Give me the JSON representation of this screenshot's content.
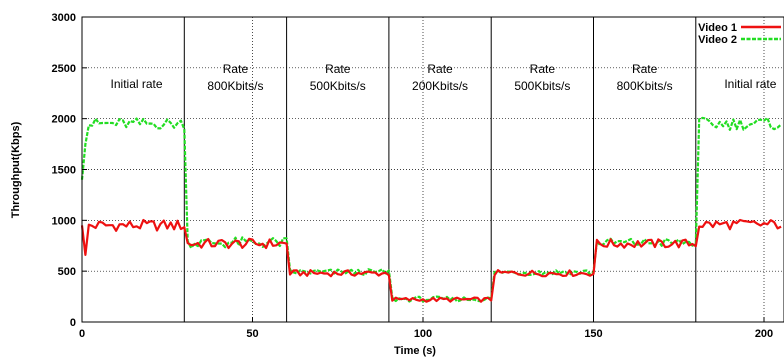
{
  "chart_data": {
    "type": "line",
    "xlabel": "Time (s)",
    "ylabel": "Throughput(Kbps)",
    "xlim": [
      0,
      205
    ],
    "ylim": [
      0,
      3000
    ],
    "x_ticks": [
      0,
      50,
      100,
      150,
      200
    ],
    "y_ticks": [
      0,
      500,
      1000,
      1500,
      2000,
      2500,
      3000
    ],
    "grid": true,
    "legend_position": "top-right",
    "colors": {
      "video1": "#ee1111",
      "video2": "#22dd22"
    },
    "phase_boundaries": [
      30,
      60,
      90,
      120,
      150,
      180
    ],
    "phases": [
      {
        "lines": [
          "Initial rate"
        ],
        "x_center": 16
      },
      {
        "lines": [
          "Rate",
          "800Kbits/s"
        ],
        "x_center": 45
      },
      {
        "lines": [
          "Rate",
          "500Kbits/s"
        ],
        "x_center": 75
      },
      {
        "lines": [
          "Rate",
          "200Kbits/s"
        ],
        "x_center": 105
      },
      {
        "lines": [
          "Rate",
          "500Kbits/s"
        ],
        "x_center": 135
      },
      {
        "lines": [
          "Rate",
          "800Kbits/s"
        ],
        "x_center": 165
      },
      {
        "lines": [
          "Initial rate"
        ],
        "x_center": 196
      }
    ],
    "series": [
      {
        "name": "Video 1",
        "style": "solid",
        "segments": [
          {
            "x_start": 0,
            "x_end": 30,
            "level": 950,
            "amplitude": 55
          },
          {
            "x_start": 31,
            "x_end": 60,
            "level": 770,
            "amplitude": 50
          },
          {
            "x_start": 61,
            "x_end": 90,
            "level": 480,
            "amplitude": 30
          },
          {
            "x_start": 91,
            "x_end": 120,
            "level": 220,
            "amplitude": 22
          },
          {
            "x_start": 121,
            "x_end": 150,
            "level": 480,
            "amplitude": 30
          },
          {
            "x_start": 151,
            "x_end": 180,
            "level": 770,
            "amplitude": 45
          },
          {
            "x_start": 181,
            "x_end": 205,
            "level": 960,
            "amplitude": 50
          }
        ]
      },
      {
        "name": "Video 2",
        "style": "dashed",
        "segments": [
          {
            "x_start": 0,
            "x_end": 30,
            "level": 1950,
            "amplitude": 55
          },
          {
            "x_start": 31,
            "x_end": 60,
            "level": 780,
            "amplitude": 55
          },
          {
            "x_start": 61,
            "x_end": 90,
            "level": 490,
            "amplitude": 30
          },
          {
            "x_start": 91,
            "x_end": 120,
            "level": 225,
            "amplitude": 25
          },
          {
            "x_start": 121,
            "x_end": 150,
            "level": 490,
            "amplitude": 30
          },
          {
            "x_start": 151,
            "x_end": 180,
            "level": 780,
            "amplitude": 45
          },
          {
            "x_start": 181,
            "x_end": 205,
            "level": 1950,
            "amplitude": 60
          }
        ]
      }
    ]
  }
}
